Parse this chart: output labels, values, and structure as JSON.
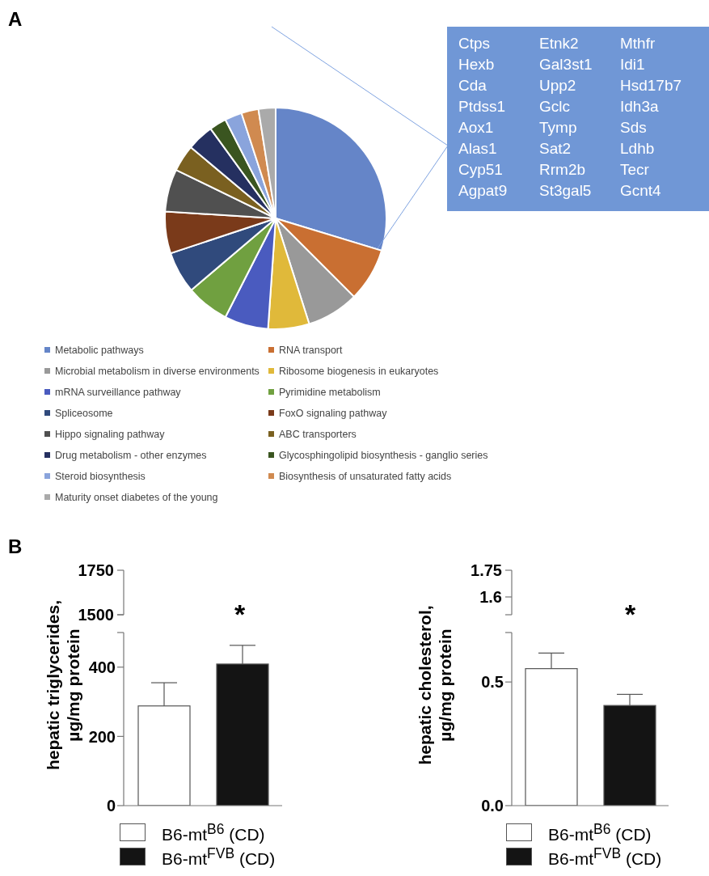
{
  "chart_data": [
    {
      "type": "pie",
      "annotations": [
        "A"
      ],
      "legend": "bottom",
      "categories": [
        "Metabolic pathways",
        "RNA transport",
        "Microbial metabolism in diverse environments",
        "Ribosome biogenesis in eukaryotes",
        "mRNA surveillance pathway",
        "Pyrimidine metabolism",
        "Spliceosome",
        "FoxO signaling pathway",
        "Hippo signaling pathway",
        "ABC transporters",
        "Drug metabolism - other enzymes",
        "Glycosphingolipid biosynthesis - ganglio series",
        "Steroid biosynthesis",
        "Biosynthesis of unsaturated fatty acids",
        "Maturity onset diabetes of the young"
      ],
      "values": [
        29.7,
        7.8,
        7.6,
        6.0,
        6.4,
        6.3,
        6.1,
        6.1,
        6.2,
        3.9,
        3.9,
        2.5,
        2.5,
        2.5,
        2.5
      ],
      "colors": [
        "#6585c8",
        "#c96f32",
        "#999999",
        "#e0b93a",
        "#4a5bbf",
        "#70a040",
        "#304a7c",
        "#7a3a1a",
        "#505050",
        "#7a6020",
        "#253060",
        "#3a5520",
        "#8aa4dc",
        "#d08a50",
        "#aaaaaa"
      ]
    },
    {
      "type": "other",
      "annotations": [
        "Ctps",
        "Hexb",
        "Cda",
        "Ptdss1",
        "Aox1",
        "Alas1",
        "Cyp51",
        "Agpat9",
        "Etnk2",
        "Gal3st1",
        "Upp2",
        "Gclc",
        "Tymp",
        "Sat2",
        "Rrm2b",
        "St3gal5",
        "Mthfr",
        "Idi1",
        "Hsd17b7",
        "Idh3a",
        "Sds",
        "Ldhb",
        "Tecr",
        "Gcnt4"
      ]
    },
    {
      "type": "bar",
      "ylabel": "hepatic triglycerides,\nµg/mg protein",
      "categories": [
        null
      ],
      "ylim": [
        0,
        500
      ],
      "yticks": [
        0,
        200,
        400,
        {
          "value": 500,
          "label": null
        }
      ],
      "tick_labels": "y",
      "legend": "bottom",
      "annotations": [
        "B",
        "*",
        "1750",
        "1500"
      ],
      "series": [
        {
          "name": "B6-mt$^{B6}$ (CD)",
          "color": "#ffffff",
          "values": [
            288
          ],
          "errors": [
            67
          ]
        },
        {
          "name": "B6-mt$^{FVB}$ (CD)",
          "color": "#141414",
          "values": [
            409
          ],
          "errors": [
            54
          ]
        }
      ]
    },
    {
      "type": "bar",
      "ylabel": "hepatic cholesterol,\nµg/mg protein",
      "categories": [
        null
      ],
      "ylim": [
        0,
        0.7
      ],
      "yticks": [
        {
          "value": 0,
          "label": "0.0"
        },
        0.5,
        {
          "value": 0.7,
          "label": null
        }
      ],
      "tick_labels": "y",
      "legend": "bottom",
      "annotations": [
        "*",
        "1.75",
        "1.6"
      ],
      "series": [
        {
          "name": "B6-mt$^{B6}$ (CD)",
          "color": "#ffffff",
          "values": [
            0.554
          ],
          "errors": [
            0.063
          ]
        },
        {
          "name": "B6-mt$^{FVB}$ (CD)",
          "color": "#141414",
          "values": [
            0.405
          ],
          "errors": [
            0.045
          ]
        }
      ]
    }
  ]
}
